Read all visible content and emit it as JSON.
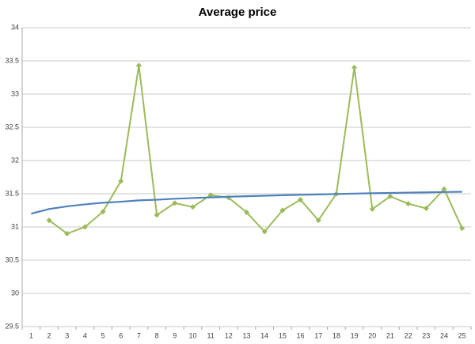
{
  "chart_data": {
    "type": "line",
    "title": "Average price",
    "categories": [
      "1",
      "2",
      "3",
      "4",
      "5",
      "6",
      "7",
      "8",
      "9",
      "10",
      "11",
      "12",
      "13",
      "14",
      "15",
      "16",
      "17",
      "18",
      "19",
      "20",
      "21",
      "22",
      "23",
      "24",
      "25"
    ],
    "series": [
      {
        "color": "#9bbb59",
        "marker": "diamond",
        "values": [
          null,
          31.1,
          30.9,
          31.0,
          31.23,
          31.69,
          33.43,
          31.18,
          31.36,
          31.3,
          31.48,
          31.44,
          31.22,
          30.93,
          31.25,
          31.41,
          31.1,
          31.5,
          33.4,
          31.27,
          31.46,
          31.35,
          31.28,
          31.57,
          30.98
        ]
      },
      {
        "color": "#4f81bd",
        "values": [
          31.2,
          31.27,
          31.31,
          31.34,
          31.365,
          31.38,
          31.4,
          31.41,
          31.425,
          31.435,
          31.445,
          31.455,
          31.463,
          31.47,
          31.478,
          31.484,
          31.49,
          31.496,
          31.502,
          31.507,
          31.512,
          31.517,
          31.521,
          31.526,
          31.53
        ]
      }
    ],
    "ylim": [
      29.5,
      34
    ],
    "yticks": [
      29.5,
      30,
      30.5,
      31,
      31.5,
      32,
      32.5,
      33,
      33.5,
      34
    ],
    "grid": true
  }
}
